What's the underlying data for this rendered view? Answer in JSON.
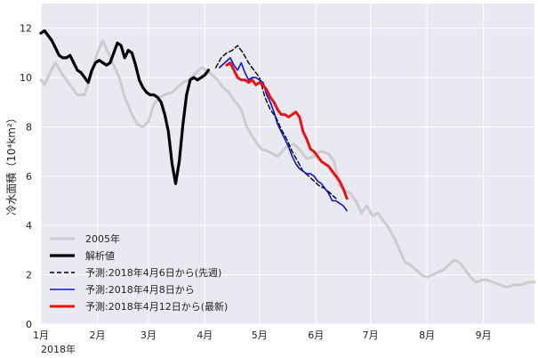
{
  "chart_data": {
    "type": "line",
    "ylabel": "冷水面積（10⁴km²）",
    "x_year_label": "2018年",
    "month_ticks": [
      "1月",
      "2月",
      "3月",
      "4月",
      "5月",
      "6月",
      "7月",
      "8月",
      "9月"
    ],
    "month_days": [
      0,
      31,
      59,
      90,
      120,
      151,
      181,
      212,
      243
    ],
    "xlim_days": [
      0,
      271
    ],
    "ylim": [
      0,
      13
    ],
    "yticks": [
      0,
      2,
      4,
      6,
      8,
      10,
      12
    ],
    "grid": true,
    "legend_position": "lower-left",
    "background": "#e9e9f1",
    "series": [
      {
        "name": "2005年",
        "color": "#cccccc",
        "width": 3,
        "dash": "",
        "x": [
          0,
          2,
          5,
          8,
          12,
          16,
          20,
          24,
          28,
          31,
          34,
          37,
          40,
          43,
          46,
          50,
          53,
          56,
          59,
          62,
          65,
          68,
          72,
          75,
          78,
          81,
          84,
          88,
          91,
          94,
          97,
          100,
          103,
          106,
          110,
          113,
          117,
          121,
          125,
          130,
          135,
          139,
          143,
          146,
          150,
          153,
          155,
          158,
          161,
          164,
          167,
          170,
          173,
          176,
          179,
          182,
          185,
          188,
          191,
          194,
          197,
          200,
          203,
          206,
          209,
          212,
          215,
          218,
          221,
          224,
          227,
          230,
          233,
          236,
          239,
          242,
          245,
          248,
          252,
          256,
          260,
          264,
          268,
          271
        ],
        "y": [
          9.9,
          9.7,
          10.2,
          10.6,
          10.1,
          9.7,
          9.3,
          9.3,
          10.2,
          11.0,
          11.5,
          11.0,
          10.5,
          10.0,
          9.2,
          8.5,
          8.1,
          8.0,
          8.2,
          8.9,
          9.2,
          9.3,
          9.4,
          9.6,
          9.8,
          9.9,
          10.1,
          10.4,
          10.3,
          10.1,
          9.9,
          9.6,
          9.4,
          9.1,
          8.7,
          8.0,
          7.5,
          7.1,
          7.0,
          6.8,
          7.2,
          7.3,
          7.0,
          6.7,
          6.8,
          7.0,
          7.0,
          6.9,
          6.6,
          5.6,
          5.4,
          5.3,
          5.0,
          4.5,
          4.8,
          4.4,
          4.5,
          4.2,
          3.9,
          3.5,
          3.0,
          2.5,
          2.4,
          2.2,
          2.0,
          1.9,
          2.0,
          2.1,
          2.2,
          2.4,
          2.6,
          2.5,
          2.2,
          1.9,
          1.7,
          1.8,
          1.8,
          1.7,
          1.6,
          1.5,
          1.6,
          1.6,
          1.7,
          1.7
        ]
      },
      {
        "name": "解析値",
        "color": "#000000",
        "width": 3.2,
        "dash": "",
        "x": [
          0,
          2,
          4,
          6,
          8,
          10,
          12,
          14,
          16,
          18,
          20,
          22,
          24,
          26,
          28,
          30,
          32,
          34,
          36,
          38,
          40,
          42,
          44,
          46,
          48,
          50,
          52,
          54,
          56,
          58,
          60,
          62,
          64,
          66,
          68,
          70,
          72,
          74,
          76,
          78,
          80,
          82,
          84,
          86,
          88,
          90,
          92
        ],
        "y": [
          11.8,
          11.9,
          11.7,
          11.5,
          11.2,
          10.9,
          10.8,
          10.8,
          10.9,
          10.6,
          10.3,
          10.2,
          10.0,
          9.8,
          10.3,
          10.6,
          10.7,
          10.6,
          10.5,
          10.6,
          11.0,
          11.4,
          11.3,
          10.8,
          11.1,
          11.0,
          10.5,
          9.9,
          9.6,
          9.4,
          9.3,
          9.3,
          9.2,
          9.0,
          8.5,
          7.8,
          6.5,
          5.7,
          6.6,
          8.1,
          9.3,
          9.9,
          10.0,
          9.9,
          10.0,
          10.1,
          10.3
        ]
      },
      {
        "name": "予測:2018年4月6日から(先週)",
        "color": "#000000",
        "width": 1.4,
        "dash": "5,3",
        "x": [
          96,
          99,
          102,
          105,
          108,
          111,
          114,
          117,
          120,
          123,
          126,
          129,
          132,
          135,
          138,
          141,
          144,
          147,
          150,
          153,
          156,
          159,
          162
        ],
        "y": [
          10.4,
          10.8,
          11.0,
          11.1,
          11.3,
          11.0,
          10.6,
          10.3,
          10.0,
          9.2,
          8.7,
          8.4,
          7.9,
          7.5,
          7.0,
          6.6,
          6.2,
          6.0,
          5.8,
          5.6,
          5.5,
          5.3,
          5.1
        ]
      },
      {
        "name": "予測:2018年4月8日から",
        "color": "#1010dd",
        "width": 1.6,
        "dash": "",
        "x": [
          98,
          101,
          104,
          106,
          108,
          110,
          112,
          114,
          116,
          118,
          120,
          122,
          124,
          126,
          128,
          130,
          132,
          134,
          136,
          138,
          140,
          142,
          144,
          146,
          148,
          150,
          152,
          154,
          156,
          158,
          160,
          162,
          164,
          166,
          168
        ],
        "y": [
          10.4,
          10.6,
          10.8,
          10.5,
          10.3,
          10.6,
          10.2,
          9.9,
          10.0,
          10.0,
          9.9,
          9.8,
          9.3,
          9.0,
          8.6,
          8.1,
          7.8,
          7.5,
          7.2,
          6.8,
          6.5,
          6.3,
          6.2,
          6.1,
          6.1,
          6.0,
          5.8,
          5.7,
          5.5,
          5.3,
          5.0,
          5.0,
          4.9,
          4.8,
          4.6
        ]
      },
      {
        "name": "予測:2018年4月12日から(最新)",
        "color": "#ee1111",
        "width": 3,
        "dash": "",
        "x": [
          102,
          104,
          106,
          108,
          110,
          112,
          114,
          116,
          118,
          120,
          122,
          124,
          126,
          128,
          130,
          132,
          134,
          136,
          138,
          140,
          142,
          144,
          146,
          148,
          150,
          152,
          154,
          156,
          158,
          160,
          162,
          164,
          166,
          168
        ],
        "y": [
          10.5,
          10.6,
          10.3,
          10.0,
          9.9,
          9.9,
          9.8,
          9.9,
          9.7,
          9.8,
          9.7,
          9.5,
          9.2,
          9.0,
          8.7,
          8.5,
          8.5,
          8.4,
          8.5,
          8.6,
          8.4,
          7.8,
          7.5,
          7.1,
          7.0,
          6.8,
          6.6,
          6.5,
          6.4,
          6.2,
          6.0,
          5.8,
          5.5,
          5.1
        ]
      }
    ]
  }
}
